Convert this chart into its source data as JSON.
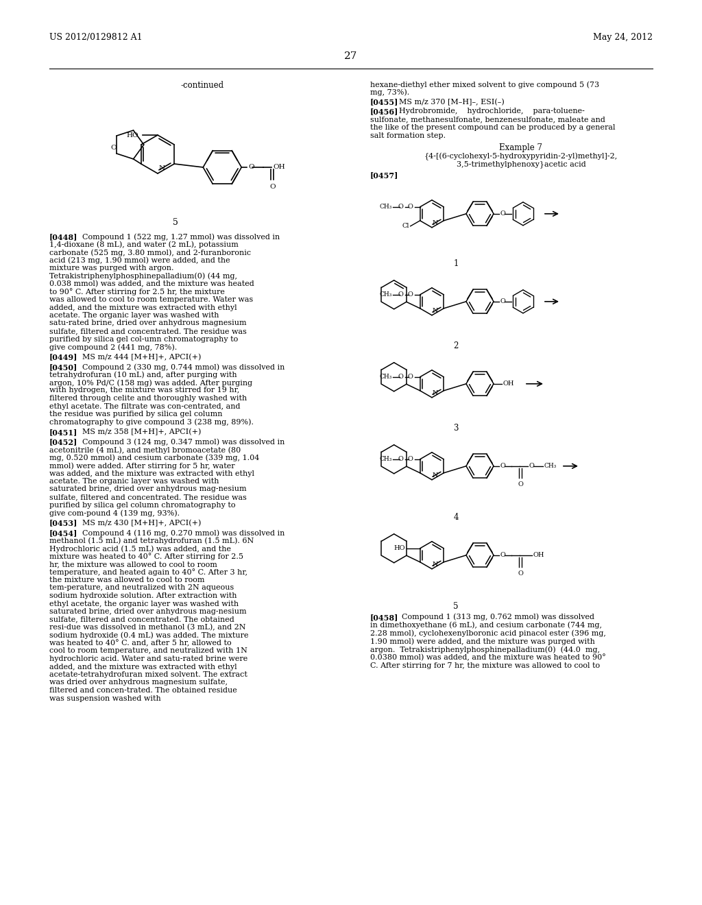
{
  "background_color": "#ffffff",
  "header_left": "US 2012/0129812 A1",
  "header_right": "May 24, 2012",
  "page_number": "27"
}
